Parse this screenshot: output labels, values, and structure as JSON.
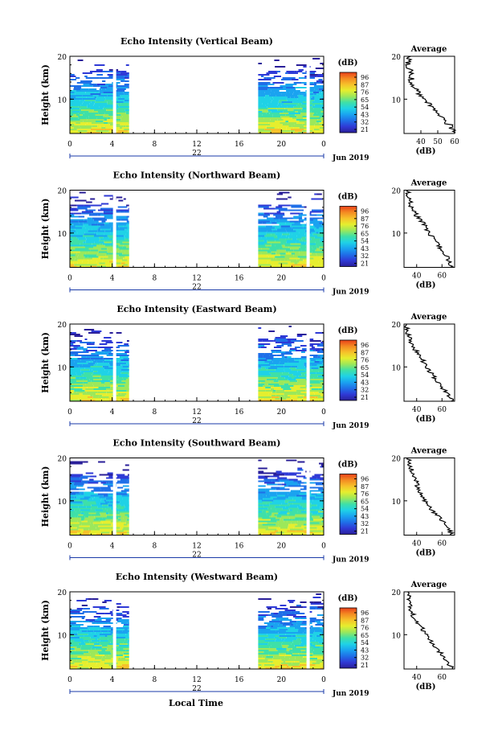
{
  "colors": {
    "colorbar": [
      "#2a1f99",
      "#2f3ad6",
      "#1f6fe8",
      "#1aa3f0",
      "#1fd2e6",
      "#3ee0a8",
      "#9ce85a",
      "#e6ee2e",
      "#f6c12a",
      "#f48a22",
      "#e8401a"
    ]
  },
  "panels": [
    {
      "title": "Echo Intensity (Vertical Beam)",
      "ylabel": "Height (km)",
      "date_label": "Jun 2019",
      "day_label": "22",
      "colorbar_unit": "(dB)",
      "colorbar_ticks": [
        "96",
        "87",
        "76",
        "65",
        "54",
        "43",
        "32",
        "21"
      ],
      "avg_title": "Average",
      "avg_xlabel": "(dB)",
      "avg_xticks": [
        "40",
        "50",
        "60"
      ],
      "avg_yticks": [
        "20",
        "10"
      ]
    },
    {
      "title": "Echo Intensity (Northward Beam)",
      "ylabel": "Height (km)",
      "date_label": "Jun 2019",
      "day_label": "22",
      "colorbar_unit": "(dB)",
      "colorbar_ticks": [
        "96",
        "87",
        "76",
        "65",
        "54",
        "43",
        "32",
        "21"
      ],
      "avg_title": "Average",
      "avg_xlabel": "(dB)",
      "avg_xticks": [
        "40",
        "60"
      ],
      "avg_yticks": [
        "20",
        "10"
      ]
    },
    {
      "title": "Echo Intensity (Eastward Beam)",
      "ylabel": "Height (km)",
      "date_label": "Jun 2019",
      "day_label": "22",
      "colorbar_unit": "(dB)",
      "colorbar_ticks": [
        "96",
        "87",
        "76",
        "65",
        "54",
        "43",
        "32",
        "21"
      ],
      "avg_title": "Average",
      "avg_xlabel": "(dB)",
      "avg_xticks": [
        "40",
        "60"
      ],
      "avg_yticks": [
        "20",
        "10"
      ]
    },
    {
      "title": "Echo Intensity (Southward Beam)",
      "ylabel": "Height (km)",
      "date_label": "Jun 2019",
      "day_label": "22",
      "colorbar_unit": "(dB)",
      "colorbar_ticks": [
        "96",
        "87",
        "76",
        "65",
        "54",
        "43",
        "32",
        "21"
      ],
      "avg_title": "Average",
      "avg_xlabel": "(dB)",
      "avg_xticks": [
        "40",
        "60"
      ],
      "avg_yticks": [
        "20",
        "10"
      ]
    },
    {
      "title": "Echo Intensity (Westward Beam)",
      "ylabel": "Height (km)",
      "date_label": "Jun 2019",
      "day_label": "22",
      "colorbar_unit": "(dB)",
      "colorbar_ticks": [
        "96",
        "87",
        "76",
        "65",
        "54",
        "43",
        "32",
        "21"
      ],
      "avg_title": "Average",
      "avg_xlabel": "(dB)",
      "avg_xticks": [
        "40",
        "60"
      ],
      "avg_yticks": [
        "20",
        "10"
      ]
    }
  ],
  "xlabel": "Local Time",
  "chart_data": [
    {
      "type": "heatmap",
      "title": "Echo Intensity (Vertical Beam)",
      "xlabel": "Local Time",
      "ylabel": "Height (km)",
      "x_ticks": [
        "0",
        "4",
        "8",
        "12",
        "16",
        "20",
        "0"
      ],
      "xlim_hours": [
        0,
        24
      ],
      "ylim_km": [
        2,
        20
      ],
      "y_ticks": [
        20,
        10
      ],
      "data_intervals_hours": [
        [
          0,
          5.6
        ],
        [
          17.8,
          24
        ]
      ],
      "gaps_hours": [
        4.0,
        22.3
      ],
      "colorbar_db": [
        21,
        32,
        43,
        54,
        65,
        76,
        87,
        96
      ],
      "average_profile": {
        "xlabel": "(dB)",
        "xlim": [
          30,
          60
        ],
        "height_km": [
          2,
          4,
          6,
          8,
          10,
          12,
          14,
          16,
          18,
          20
        ],
        "db": [
          60,
          57,
          51,
          47,
          42,
          38,
          34,
          35,
          32,
          34
        ]
      }
    },
    {
      "type": "heatmap",
      "title": "Echo Intensity (Northward Beam)",
      "xlabel": "Local Time",
      "ylabel": "Height (km)",
      "x_ticks": [
        "0",
        "4",
        "8",
        "12",
        "16",
        "20",
        "0"
      ],
      "xlim_hours": [
        0,
        24
      ],
      "ylim_km": [
        2,
        20
      ],
      "y_ticks": [
        20,
        10
      ],
      "data_intervals_hours": [
        [
          0,
          5.6
        ],
        [
          17.8,
          24
        ]
      ],
      "gaps_hours": [
        4.0,
        22.3
      ],
      "colorbar_db": [
        21,
        32,
        43,
        54,
        65,
        76,
        87,
        96
      ],
      "average_profile": {
        "xlabel": "(dB)",
        "xlim": [
          30,
          70
        ],
        "height_km": [
          2,
          4,
          6,
          8,
          10,
          12,
          14,
          16,
          18,
          20
        ],
        "db": [
          68,
          65,
          60,
          55,
          50,
          46,
          40,
          36,
          34,
          33
        ]
      }
    },
    {
      "type": "heatmap",
      "title": "Echo Intensity (Eastward Beam)",
      "xlabel": "Local Time",
      "ylabel": "Height (km)",
      "x_ticks": [
        "0",
        "4",
        "8",
        "12",
        "16",
        "20",
        "0"
      ],
      "xlim_hours": [
        0,
        24
      ],
      "ylim_km": [
        2,
        20
      ],
      "y_ticks": [
        20,
        10
      ],
      "data_intervals_hours": [
        [
          0,
          5.6
        ],
        [
          17.8,
          24
        ]
      ],
      "gaps_hours": [
        4.0,
        22.3
      ],
      "colorbar_db": [
        21,
        32,
        43,
        54,
        65,
        76,
        87,
        96
      ],
      "average_profile": {
        "xlabel": "(dB)",
        "xlim": [
          30,
          70
        ],
        "height_km": [
          2,
          4,
          6,
          8,
          10,
          12,
          14,
          16,
          18,
          20
        ],
        "db": [
          68,
          64,
          58,
          53,
          48,
          44,
          39,
          35,
          33,
          32
        ]
      }
    },
    {
      "type": "heatmap",
      "title": "Echo Intensity (Southward Beam)",
      "xlabel": "Local Time",
      "ylabel": "Height (km)",
      "x_ticks": [
        "0",
        "4",
        "8",
        "12",
        "16",
        "20",
        "0"
      ],
      "xlim_hours": [
        0,
        24
      ],
      "ylim_km": [
        2,
        20
      ],
      "y_ticks": [
        20,
        10
      ],
      "data_intervals_hours": [
        [
          0,
          5.6
        ],
        [
          17.8,
          24
        ]
      ],
      "gaps_hours": [
        4.0,
        22.3
      ],
      "colorbar_db": [
        21,
        32,
        43,
        54,
        65,
        76,
        87,
        96
      ],
      "average_profile": {
        "xlabel": "(dB)",
        "xlim": [
          30,
          70
        ],
        "height_km": [
          2,
          4,
          6,
          8,
          10,
          12,
          14,
          16,
          18,
          20
        ],
        "db": [
          68,
          64,
          58,
          52,
          46,
          43,
          40,
          37,
          35,
          33
        ]
      }
    },
    {
      "type": "heatmap",
      "title": "Echo Intensity (Westward Beam)",
      "xlabel": "Local Time",
      "ylabel": "Height (km)",
      "x_ticks": [
        "0",
        "4",
        "8",
        "12",
        "16",
        "20",
        "0"
      ],
      "xlim_hours": [
        0,
        24
      ],
      "ylim_km": [
        2,
        20
      ],
      "y_ticks": [
        20,
        10
      ],
      "data_intervals_hours": [
        [
          0,
          5.6
        ],
        [
          17.8,
          24
        ]
      ],
      "gaps_hours": [
        4.0,
        22.3
      ],
      "colorbar_db": [
        21,
        32,
        43,
        54,
        65,
        76,
        87,
        96
      ],
      "average_profile": {
        "xlabel": "(dB)",
        "xlim": [
          30,
          70
        ],
        "height_km": [
          2,
          4,
          6,
          8,
          10,
          12,
          14,
          16,
          18,
          20
        ],
        "db": [
          68,
          64,
          58,
          52,
          47,
          43,
          38,
          35,
          34,
          33
        ]
      }
    }
  ]
}
